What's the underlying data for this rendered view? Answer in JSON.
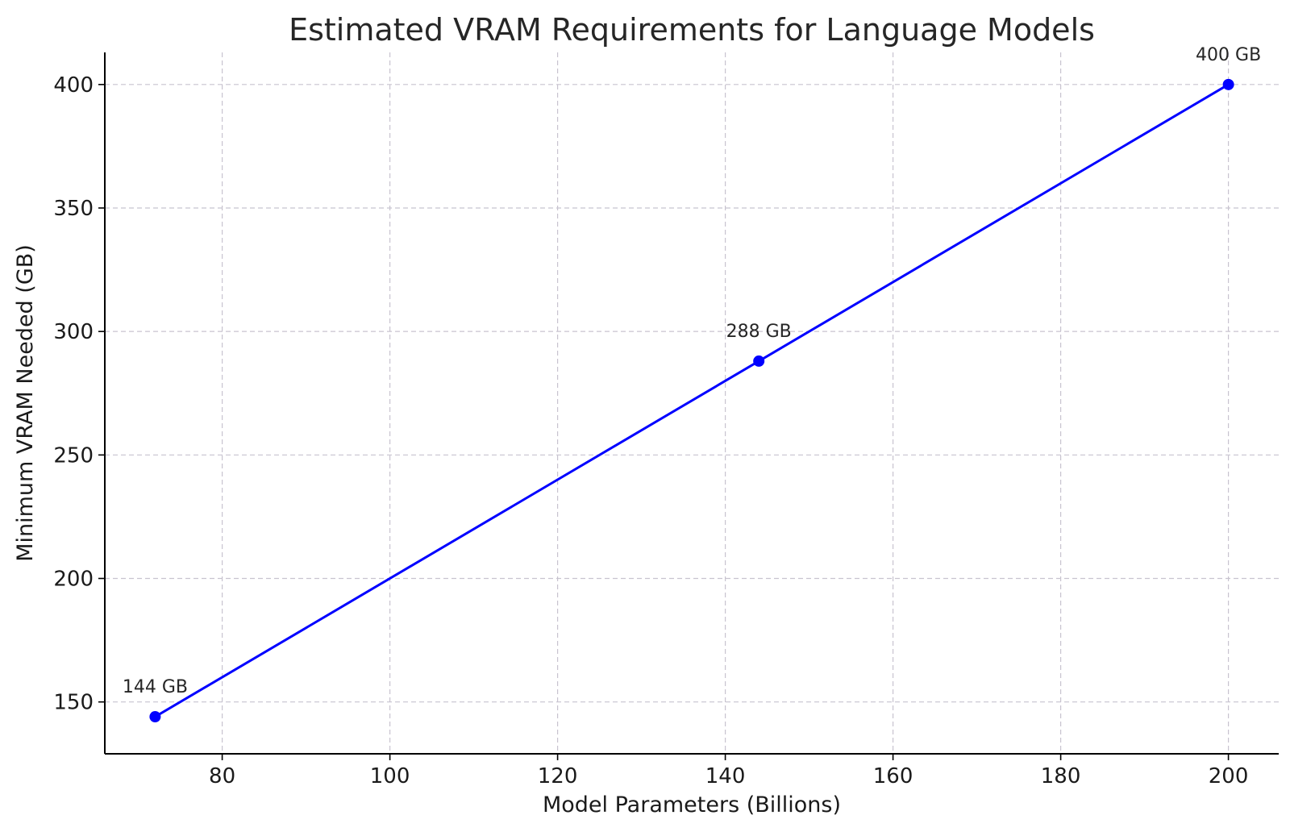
{
  "chart_data": {
    "type": "line",
    "title": "Estimated VRAM Requirements for Language Models",
    "xlabel": "Model Parameters (Billions)",
    "ylabel": "Minimum VRAM Needed (GB)",
    "xlim": [
      66,
      206
    ],
    "ylim": [
      129,
      413
    ],
    "xticks": [
      80,
      100,
      120,
      140,
      160,
      180,
      200
    ],
    "yticks": [
      150,
      200,
      250,
      300,
      350,
      400
    ],
    "grid": true,
    "series": [
      {
        "color": "#0000ff",
        "x": [
          72,
          144,
          200
        ],
        "y": [
          144,
          288,
          400
        ],
        "labels": [
          "144 GB",
          "288 GB",
          "400 GB"
        ]
      }
    ]
  }
}
